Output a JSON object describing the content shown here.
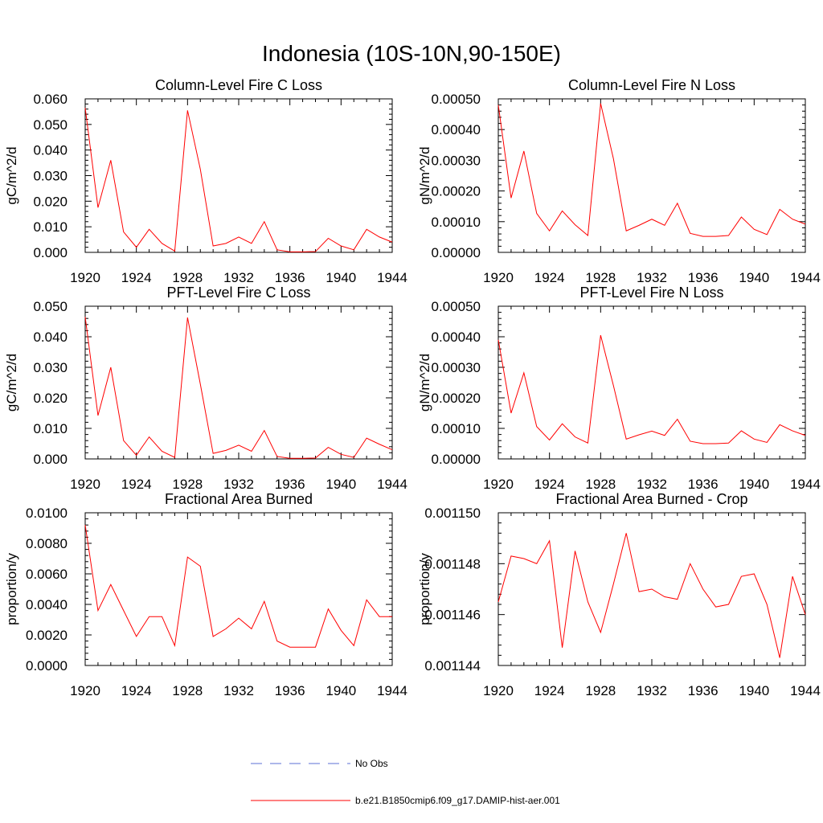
{
  "page": {
    "title": "Indonesia (10S-10N,90-150E)"
  },
  "legend": {
    "items": [
      {
        "label": "No Obs",
        "color": "#5b6fd6",
        "style": "dashed"
      },
      {
        "label": "b.e21.B1850cmip6.f09_g17.DAMIP-hist-aer.001",
        "color": "#ff0000",
        "style": "solid"
      }
    ]
  },
  "chart_data": [
    {
      "type": "line",
      "title": "Column-Level Fire C Loss",
      "xlabel": "",
      "ylabel": "gC/m^2/d",
      "xlim": [
        1920,
        1944
      ],
      "ylim": [
        0,
        0.06
      ],
      "x_ticks": [
        "1920",
        "1924",
        "1928",
        "1932",
        "1936",
        "1940",
        "1944"
      ],
      "y_ticks": [
        "0.000",
        "0.010",
        "0.020",
        "0.030",
        "0.040",
        "0.050",
        "0.060"
      ],
      "x": [
        1920,
        1921,
        1922,
        1923,
        1924,
        1925,
        1926,
        1927,
        1928,
        1929,
        1930,
        1931,
        1932,
        1933,
        1934,
        1935,
        1936,
        1937,
        1938,
        1939,
        1940,
        1941,
        1942,
        1943,
        1944
      ],
      "series": [
        {
          "color": "#ff0000",
          "values": [
            0.0565,
            0.0175,
            0.036,
            0.008,
            0.002,
            0.009,
            0.0035,
            0.0005,
            0.0555,
            0.0325,
            0.0025,
            0.0035,
            0.006,
            0.0035,
            0.012,
            0.001,
            0.0002,
            0.0002,
            0.0003,
            0.0055,
            0.0025,
            0.001,
            0.009,
            0.006,
            0.004
          ]
        }
      ],
      "grid": false
    },
    {
      "type": "line",
      "title": "Column-Level Fire N Loss",
      "xlabel": "",
      "ylabel": "gN/m^2/d",
      "xlim": [
        1920,
        1944
      ],
      "ylim": [
        0,
        0.0005
      ],
      "x_ticks": [
        "1920",
        "1924",
        "1928",
        "1932",
        "1936",
        "1940",
        "1944"
      ],
      "y_ticks": [
        "0.00000",
        "0.00010",
        "0.00020",
        "0.00030",
        "0.00040",
        "0.00050"
      ],
      "x": [
        1920,
        1921,
        1922,
        1923,
        1924,
        1925,
        1926,
        1927,
        1928,
        1929,
        1930,
        1931,
        1932,
        1933,
        1934,
        1935,
        1936,
        1937,
        1938,
        1939,
        1940,
        1941,
        1942,
        1943,
        1944
      ],
      "series": [
        {
          "color": "#ff0000",
          "values": [
            0.00048,
            0.000177,
            0.00033,
            0.000127,
            7e-05,
            0.000135,
            9e-05,
            5.5e-05,
            0.000485,
            0.000305,
            7e-05,
            8.8e-05,
            0.000108,
            8.8e-05,
            0.00016,
            6.2e-05,
            5.2e-05,
            5.2e-05,
            5.5e-05,
            0.000115,
            7.5e-05,
            5.8e-05,
            0.00014,
            0.000108,
            9.2e-05
          ]
        }
      ],
      "grid": false
    },
    {
      "type": "line",
      "title": "PFT-Level Fire C Loss",
      "xlabel": "",
      "ylabel": "gC/m^2/d",
      "xlim": [
        1920,
        1944
      ],
      "ylim": [
        0,
        0.05
      ],
      "x_ticks": [
        "1920",
        "1924",
        "1928",
        "1932",
        "1936",
        "1940",
        "1944"
      ],
      "y_ticks": [
        "0.000",
        "0.010",
        "0.020",
        "0.030",
        "0.040",
        "0.050"
      ],
      "x": [
        1920,
        1921,
        1922,
        1923,
        1924,
        1925,
        1926,
        1927,
        1928,
        1929,
        1930,
        1931,
        1932,
        1933,
        1934,
        1935,
        1936,
        1937,
        1938,
        1939,
        1940,
        1941,
        1942,
        1943,
        1944
      ],
      "series": [
        {
          "color": "#ff0000",
          "values": [
            0.0465,
            0.0142,
            0.03,
            0.006,
            0.0012,
            0.0072,
            0.0025,
            0.0005,
            0.0463,
            0.0245,
            0.0018,
            0.0028,
            0.0045,
            0.0025,
            0.0093,
            0.0008,
            0.0002,
            0.0002,
            0.0003,
            0.0038,
            0.0015,
            0.0005,
            0.0068,
            0.0048,
            0.003
          ]
        }
      ],
      "grid": false
    },
    {
      "type": "line",
      "title": "PFT-Level Fire N Loss",
      "xlabel": "",
      "ylabel": "gN/m^2/d",
      "xlim": [
        1920,
        1944
      ],
      "ylim": [
        0,
        0.0005
      ],
      "x_ticks": [
        "1920",
        "1924",
        "1928",
        "1932",
        "1936",
        "1940",
        "1944"
      ],
      "y_ticks": [
        "0.00000",
        "0.00010",
        "0.00020",
        "0.00030",
        "0.00040",
        "0.00050"
      ],
      "x": [
        1920,
        1921,
        1922,
        1923,
        1924,
        1925,
        1926,
        1927,
        1928,
        1929,
        1930,
        1931,
        1932,
        1933,
        1934,
        1935,
        1936,
        1937,
        1938,
        1939,
        1940,
        1941,
        1942,
        1943,
        1944
      ],
      "series": [
        {
          "color": "#ff0000",
          "values": [
            0.00039,
            0.00015,
            0.000282,
            0.000106,
            6.2e-05,
            0.000115,
            7.2e-05,
            5.2e-05,
            0.000405,
            0.00024,
            6.5e-05,
            7.9e-05,
            9.1e-05,
            7.7e-05,
            0.00013,
            5.8e-05,
            5e-05,
            5e-05,
            5.2e-05,
            9.2e-05,
            6.5e-05,
            5.4e-05,
            0.000112,
            9.2e-05,
            7.7e-05
          ]
        }
      ],
      "grid": false
    },
    {
      "type": "line",
      "title": "Fractional Area Burned",
      "xlabel": "",
      "ylabel": "proportion/y",
      "xlim": [
        1920,
        1944
      ],
      "ylim": [
        0,
        0.01
      ],
      "x_ticks": [
        "1920",
        "1924",
        "1928",
        "1932",
        "1936",
        "1940",
        "1944"
      ],
      "y_ticks": [
        "0.0000",
        "0.0020",
        "0.0040",
        "0.0060",
        "0.0080",
        "0.0100"
      ],
      "x": [
        1920,
        1921,
        1922,
        1923,
        1924,
        1925,
        1926,
        1927,
        1928,
        1929,
        1930,
        1931,
        1932,
        1933,
        1934,
        1935,
        1936,
        1937,
        1938,
        1939,
        1940,
        1941,
        1942,
        1943,
        1944
      ],
      "series": [
        {
          "color": "#ff0000",
          "values": [
            0.0092,
            0.0036,
            0.0053,
            0.0036,
            0.0019,
            0.0032,
            0.0032,
            0.0013,
            0.0071,
            0.0065,
            0.0019,
            0.0024,
            0.0031,
            0.0024,
            0.0042,
            0.0016,
            0.0012,
            0.0012,
            0.0012,
            0.0037,
            0.0023,
            0.0013,
            0.0043,
            0.0032,
            0.0032
          ]
        }
      ],
      "grid": false
    },
    {
      "type": "line",
      "title": "Fractional Area Burned - Crop",
      "xlabel": "",
      "ylabel": "proportion/y",
      "xlim": [
        1920,
        1944
      ],
      "ylim": [
        0.001144,
        0.00115
      ],
      "x_ticks": [
        "1920",
        "1924",
        "1928",
        "1932",
        "1936",
        "1940",
        "1944"
      ],
      "y_ticks": [
        "0.001144",
        "0.001146",
        "0.001148",
        "0.001150"
      ],
      "x": [
        1920,
        1921,
        1922,
        1923,
        1924,
        1925,
        1926,
        1927,
        1928,
        1929,
        1930,
        1931,
        1932,
        1933,
        1934,
        1935,
        1936,
        1937,
        1938,
        1939,
        1940,
        1941,
        1942,
        1943,
        1944
      ],
      "series": [
        {
          "color": "#ff0000",
          "values": [
            0.0011465,
            0.0011483,
            0.0011482,
            0.001148,
            0.0011489,
            0.0011447,
            0.0011485,
            0.0011465,
            0.0011453,
            0.0011472,
            0.0011492,
            0.0011469,
            0.001147,
            0.0011467,
            0.0011466,
            0.001148,
            0.001147,
            0.0011463,
            0.0011464,
            0.0011475,
            0.0011476,
            0.0011464,
            0.0011443,
            0.0011475,
            0.001146
          ]
        }
      ],
      "grid": false
    }
  ]
}
